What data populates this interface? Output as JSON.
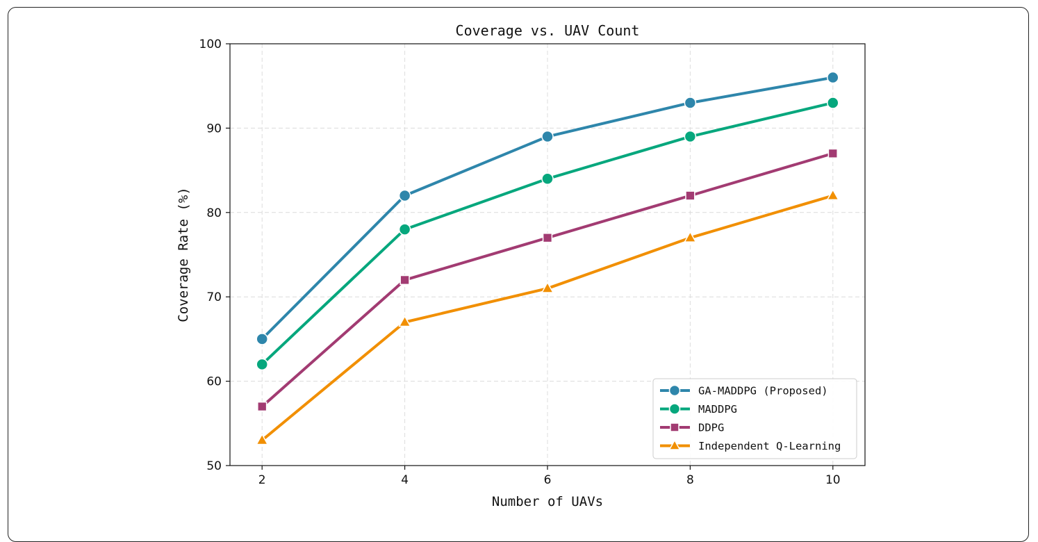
{
  "chart_data": {
    "type": "line",
    "title": "Coverage vs. UAV Count",
    "xlabel": "Number of UAVs",
    "ylabel": "Coverage Rate (%)",
    "x": [
      2,
      4,
      6,
      8,
      10
    ],
    "x_ticks": [
      "2",
      "4",
      "6",
      "8",
      "10"
    ],
    "y_ticks": [
      "50",
      "60",
      "70",
      "80",
      "90",
      "100"
    ],
    "xlim": [
      1.55,
      10.45
    ],
    "ylim": [
      50,
      100
    ],
    "grid": true,
    "legend_position": "lower-right",
    "series": [
      {
        "name": "GA-MADDPG (Proposed)",
        "values": [
          65,
          82,
          89,
          93,
          96
        ],
        "color": "#2e86ab",
        "marker": "circle"
      },
      {
        "name": "MADDPG",
        "values": [
          62,
          78,
          84,
          89,
          93
        ],
        "color": "#06a77d",
        "marker": "circle"
      },
      {
        "name": "DDPG",
        "values": [
          57,
          72,
          77,
          82,
          87
        ],
        "color": "#a23b72",
        "marker": "square"
      },
      {
        "name": "Independent Q-Learning",
        "values": [
          53,
          67,
          71,
          77,
          82
        ],
        "color": "#f18f01",
        "marker": "triangle"
      }
    ]
  }
}
